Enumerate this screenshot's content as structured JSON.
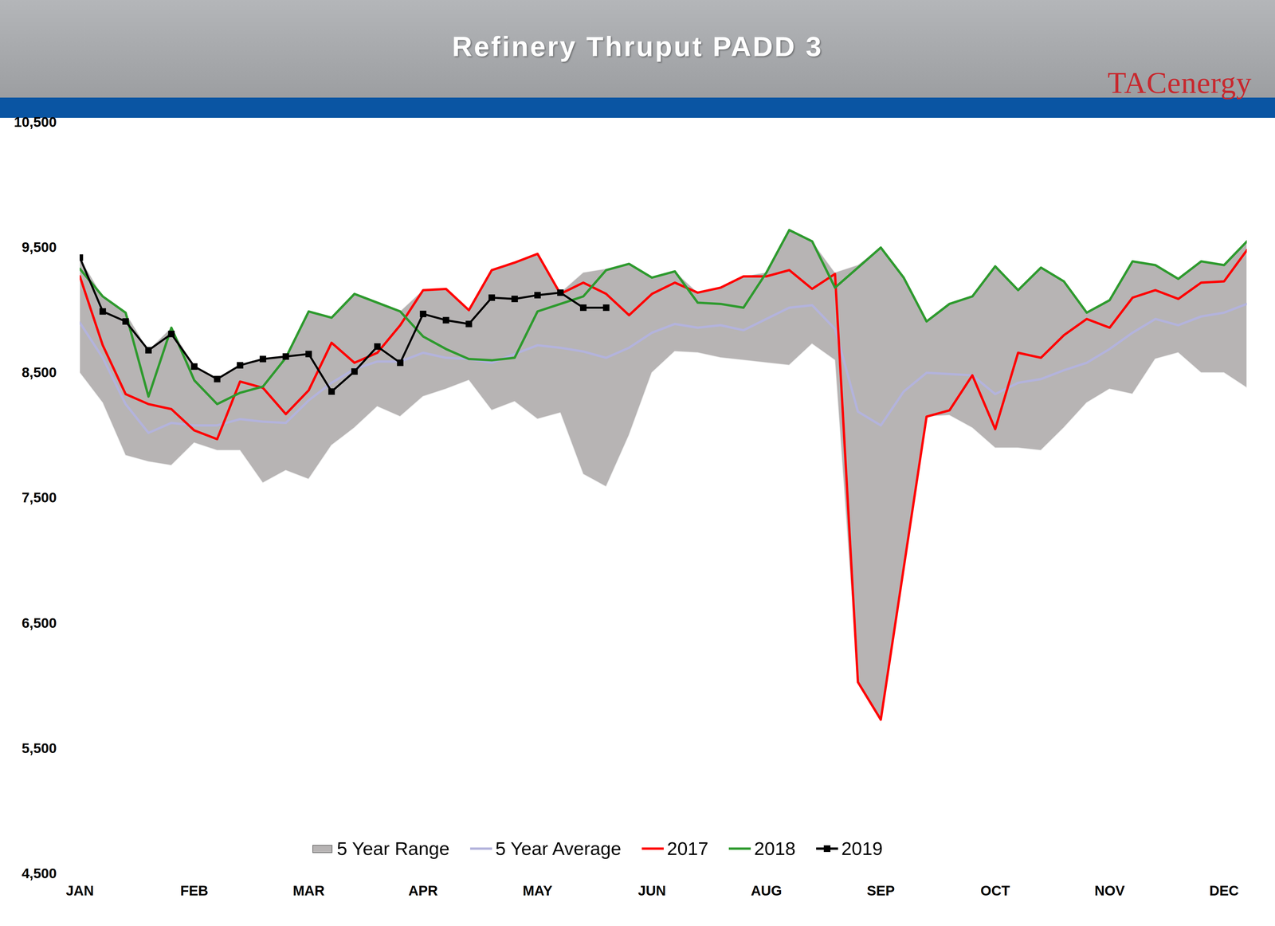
{
  "chart_data": {
    "type": "line",
    "title": "Refinery Thruput PADD 3",
    "source": "TACenergy",
    "categories": [
      "JAN",
      null,
      null,
      null,
      null,
      "FEB",
      null,
      null,
      null,
      null,
      "MAR",
      null,
      null,
      null,
      null,
      "APR",
      null,
      null,
      null,
      null,
      "MAY",
      null,
      null,
      null,
      null,
      "JUN",
      null,
      null,
      null,
      null,
      "AUG",
      null,
      null,
      null,
      null,
      "SEP",
      null,
      null,
      null,
      null,
      "OCT",
      null,
      null,
      null,
      null,
      "NOV",
      null,
      null,
      null,
      null,
      "DEC",
      null
    ],
    "series": [
      {
        "name": "5 Year Range",
        "type": "area",
        "color": "#b7b4b4",
        "low": [
          8500,
          8260,
          7840,
          7790,
          7760,
          7940,
          7880,
          7880,
          7620,
          7720,
          7650,
          7920,
          8060,
          8230,
          8150,
          8310,
          8370,
          8440,
          8200,
          8270,
          8130,
          8180,
          7690,
          7590,
          8000,
          8500,
          8670,
          8660,
          8620,
          8600,
          8580,
          8560,
          8730,
          8600,
          6030,
          5730,
          6940,
          8150,
          8160,
          8060,
          7900,
          7900,
          7880,
          8060,
          8260,
          8370,
          8330,
          8610,
          8660,
          8500,
          8500,
          8380
        ],
        "high": [
          9420,
          9110,
          8980,
          8680,
          8860,
          8550,
          8450,
          8560,
          8610,
          8630,
          8990,
          8940,
          9130,
          9060,
          8990,
          9160,
          9170,
          9000,
          9320,
          9380,
          9450,
          9140,
          9300,
          9330,
          9370,
          9260,
          9310,
          9140,
          9180,
          9270,
          9300,
          9640,
          9550,
          9300,
          9360,
          9500,
          9260,
          8910,
          9050,
          9110,
          9350,
          9160,
          9340,
          9230,
          8980,
          9080,
          9390,
          9360,
          9250,
          9390,
          9360,
          9550
        ]
      },
      {
        "name": "5 Year Average",
        "type": "line",
        "color": "#b3b3dc",
        "values": [
          8900,
          8620,
          8250,
          8020,
          8100,
          8080,
          8080,
          8130,
          8110,
          8100,
          8280,
          8420,
          8530,
          8590,
          8590,
          8660,
          8620,
          8610,
          8580,
          8650,
          8720,
          8700,
          8670,
          8620,
          8700,
          8820,
          8890,
          8860,
          8880,
          8840,
          8930,
          9020,
          9040,
          8850,
          8190,
          8080,
          8350,
          8500,
          8490,
          8480,
          8330,
          8420,
          8450,
          8520,
          8580,
          8690,
          8820,
          8930,
          8880,
          8950,
          8980,
          9050
        ]
      },
      {
        "name": "2017",
        "type": "line",
        "color": "#ff0000",
        "values": [
          9270,
          8720,
          8330,
          8250,
          8210,
          8040,
          7970,
          8430,
          8380,
          8170,
          8360,
          8740,
          8580,
          8660,
          8880,
          9160,
          9170,
          9000,
          9320,
          9380,
          9450,
          9130,
          9220,
          9130,
          8960,
          9130,
          9220,
          9140,
          9180,
          9270,
          9270,
          9320,
          9170,
          9290,
          6030,
          5730,
          6940,
          8150,
          8200,
          8480,
          8050,
          8660,
          8620,
          8800,
          8930,
          8860,
          9100,
          9160,
          9090,
          9220,
          9230,
          9480
        ]
      },
      {
        "name": "2018",
        "type": "line",
        "color": "#2e9a2e",
        "values": [
          9330,
          9110,
          8980,
          8310,
          8860,
          8440,
          8250,
          8340,
          8390,
          8620,
          8990,
          8940,
          9130,
          9060,
          8990,
          8790,
          8690,
          8610,
          8600,
          8620,
          8990,
          9050,
          9110,
          9320,
          9370,
          9260,
          9310,
          9060,
          9050,
          9020,
          9300,
          9640,
          9550,
          9180,
          9340,
          9500,
          9260,
          8910,
          9050,
          9110,
          9350,
          9160,
          9340,
          9230,
          8980,
          9080,
          9390,
          9360,
          9250,
          9390,
          9360,
          9550
        ]
      },
      {
        "name": "2019",
        "type": "line",
        "color": "#000000",
        "marker": "square",
        "values": [
          9420,
          8990,
          8910,
          8680,
          8810,
          8550,
          8450,
          8560,
          8610,
          8630,
          8650,
          8350,
          8510,
          8710,
          8580,
          8970,
          8920,
          8890,
          9100,
          9090,
          9120,
          9140,
          9020,
          9020,
          null,
          null,
          null,
          null,
          null,
          null,
          null,
          null,
          null,
          null,
          null,
          null,
          null,
          null,
          null,
          null,
          null,
          null,
          null,
          null,
          null,
          null,
          null,
          null,
          null,
          null,
          null,
          null
        ]
      }
    ],
    "ylim": [
      4500,
      10500
    ],
    "yticks": [
      {
        "value": 4500,
        "label": "4,500"
      },
      {
        "value": 5500,
        "label": "5,500"
      },
      {
        "value": 6500,
        "label": "6,500"
      },
      {
        "value": 7500,
        "label": "7,500"
      },
      {
        "value": 8500,
        "label": "8,500"
      },
      {
        "value": 9500,
        "label": "9,500"
      },
      {
        "value": 10500,
        "label": "10,500"
      }
    ],
    "grid": false,
    "legend": "bottom"
  }
}
